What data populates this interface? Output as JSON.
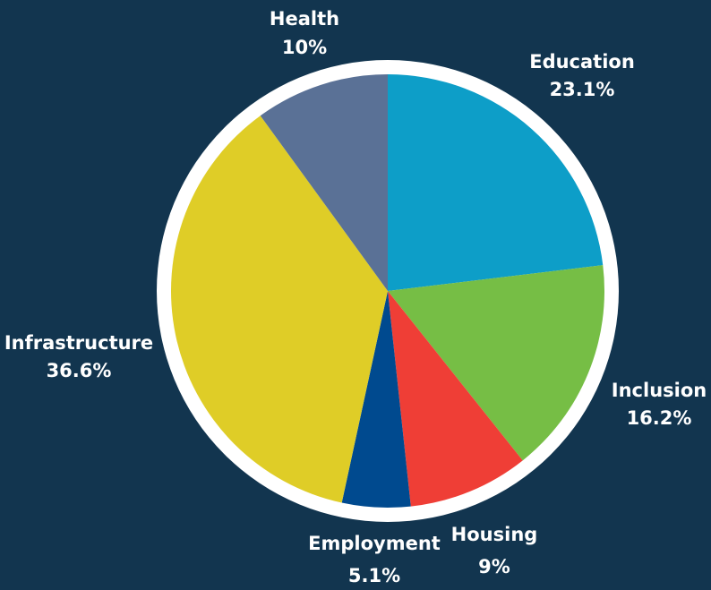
{
  "chart_data": {
    "type": "pie",
    "title": "",
    "slices": [
      {
        "label": "Education",
        "value": 23.1,
        "value_label": "23.1%",
        "color": "#0d9ec8"
      },
      {
        "label": "Inclusion",
        "value": 16.2,
        "value_label": "16.2%",
        "color": "#76be45"
      },
      {
        "label": "Housing",
        "value": 9,
        "value_label": "9%",
        "color": "#ef3e36"
      },
      {
        "label": "Employment",
        "value": 5.1,
        "value_label": "5.1%",
        "color": "#004a8f"
      },
      {
        "label": "Infrastructure",
        "value": 36.6,
        "value_label": "36.6%",
        "color": "#dfcd27"
      },
      {
        "label": "Health",
        "value": 10,
        "value_label": "10%",
        "color": "#5a7196"
      }
    ],
    "start_angle_deg": 0,
    "direction": "clockwise",
    "legend": "none",
    "background_color": "#12354f",
    "ring_color": "#ffffff"
  }
}
